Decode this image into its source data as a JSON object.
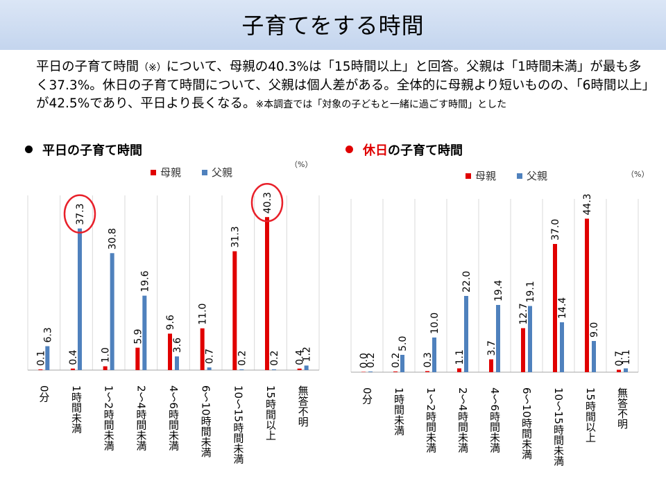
{
  "header": {
    "title": "子育てをする時間"
  },
  "summary": {
    "text": "平日の子育て時間",
    "note_mark": "（※）",
    "text_rest": "について、母親の40.3%は「15時間以上」と回答。父親は「1時間未満」が最も多く37.3%。休日の子育て時間について、父親は個人差がある。全体的に母親より短いものの、「6時間以上」が42.5%であり、平日より長くなる。",
    "note": "※本調査では「対象の子どもと一緒に過ごす時間」とした"
  },
  "headings": {
    "weekday": "平日の子育て時間",
    "holiday_prefix": "休日",
    "holiday_suffix": "の子育て時間"
  },
  "colors": {
    "mother": "#e00000",
    "father": "#4f81bd",
    "highlight": "#e8202a"
  },
  "chart_data": [
    {
      "type": "bar",
      "title": "平日の子育て時間",
      "unit": "（%）",
      "categories": [
        "0分",
        "1時間未満",
        "1～2時間未満",
        "2～4時間未満",
        "4～6時間未満",
        "6～10時間未満",
        "10～15時間未満",
        "15時間以上",
        "無答不明"
      ],
      "series": [
        {
          "name": "母親",
          "values": [
            0.1,
            0.4,
            1.0,
            5.9,
            9.6,
            11.0,
            31.3,
            40.3,
            0.4
          ]
        },
        {
          "name": "父親",
          "values": [
            6.3,
            37.3,
            30.8,
            19.6,
            3.6,
            0.7,
            0.2,
            0.2,
            1.2
          ]
        }
      ],
      "labels": {
        "mother": [
          "0.1",
          "0.4",
          "1.0",
          "5.9",
          "9.6",
          "11.0",
          "31.3",
          "40.3",
          "0.4"
        ],
        "father": [
          "6.3",
          "37.3",
          "30.8",
          "19.6",
          "3.6",
          "0.7",
          "0.2",
          "0.2",
          "1.2"
        ]
      },
      "highlights": [
        "father:1",
        "mother:7"
      ],
      "ylim": [
        0,
        46
      ],
      "legend": "top"
    },
    {
      "type": "bar",
      "title": "休日の子育て時間",
      "unit": "（%）",
      "categories": [
        "0分",
        "1時間未満",
        "1～2時間未満",
        "2～4時間未満",
        "4～6時間未満",
        "6～10時間未満",
        "10～15時間未満",
        "15時間以上",
        "無答不明"
      ],
      "series": [
        {
          "name": "母親",
          "values": [
            0.0,
            0.2,
            0.3,
            1.1,
            3.7,
            12.7,
            37.0,
            44.3,
            0.7
          ]
        },
        {
          "name": "父親",
          "values": [
            0.2,
            5.0,
            10.0,
            22.0,
            19.4,
            19.1,
            14.4,
            9.0,
            1.1
          ]
        }
      ],
      "labels": {
        "mother": [
          "0.0",
          "0.2",
          "0.3",
          "1.1",
          "3.7",
          "12.7",
          "37.0",
          "44.3",
          "0.7"
        ],
        "father": [
          "0.2",
          "5.0",
          "10.0",
          "22.0",
          "19.4",
          "19.1",
          "14.4",
          "9.0",
          "1.1"
        ]
      },
      "highlights": [],
      "ylim": [
        0,
        50
      ],
      "legend": "top"
    }
  ]
}
